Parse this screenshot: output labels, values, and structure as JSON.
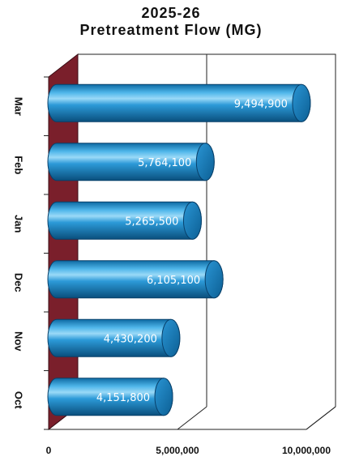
{
  "chart_data": {
    "type": "bar",
    "orientation": "horizontal",
    "style": "3d-cylinder",
    "title_lines": [
      "2025-26",
      "Pretreatment Flow (MG)"
    ],
    "categories": [
      "Mar",
      "Feb",
      "Jan",
      "Dec",
      "Nov",
      "Oct"
    ],
    "values": [
      9494900,
      5764100,
      5265500,
      6105100,
      4430200,
      4151800
    ],
    "value_labels": [
      "9,494,900",
      "5,764,100",
      "5,265,500",
      "6,105,100",
      "4,430,200",
      "4,151,800"
    ],
    "x_ticks": [
      0,
      5000000,
      10000000
    ],
    "x_tick_labels": [
      "0",
      "5,000,000",
      "10,000,000"
    ],
    "xlim": [
      0,
      10000000
    ],
    "grid": true,
    "legend": "none",
    "colors": {
      "bar": "#1a8fd0",
      "bar_highlight": "#8fd4f5",
      "bar_shadow": "#0b5a8a",
      "bar_cap": "#1378b5",
      "side_wall": "#7a1f2b",
      "axis": "#222222"
    }
  }
}
